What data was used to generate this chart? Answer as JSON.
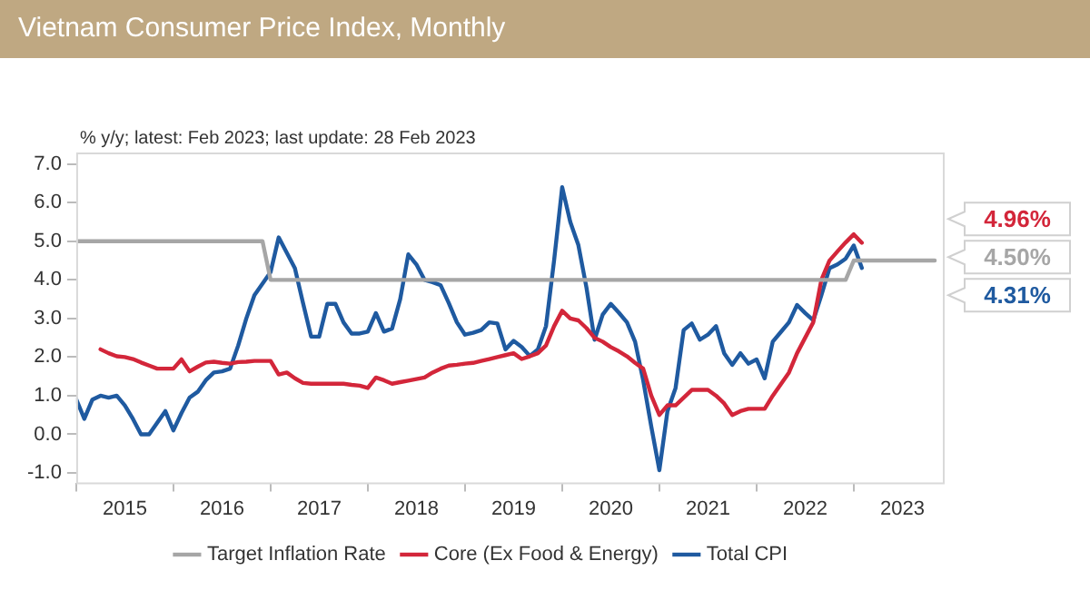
{
  "chart_data": {
    "type": "line",
    "title": "Vietnam Consumer Price Index, Monthly",
    "annotations": [
      "% y/y; latest: Feb 2023; last update: 28 Feb 2023",
      "4.96%",
      "4.50%",
      "4.31%"
    ],
    "x": [
      "2015-01",
      "2015-02",
      "2015-03",
      "2015-04",
      "2015-05",
      "2015-06",
      "2015-07",
      "2015-08",
      "2015-09",
      "2015-10",
      "2015-11",
      "2015-12",
      "2016-01",
      "2016-02",
      "2016-03",
      "2016-04",
      "2016-05",
      "2016-06",
      "2016-07",
      "2016-08",
      "2016-09",
      "2016-10",
      "2016-11",
      "2016-12",
      "2017-01",
      "2017-02",
      "2017-03",
      "2017-04",
      "2017-05",
      "2017-06",
      "2017-07",
      "2017-08",
      "2017-09",
      "2017-10",
      "2017-11",
      "2017-12",
      "2018-01",
      "2018-02",
      "2018-03",
      "2018-04",
      "2018-05",
      "2018-06",
      "2018-07",
      "2018-08",
      "2018-09",
      "2018-10",
      "2018-11",
      "2018-12",
      "2019-01",
      "2019-02",
      "2019-03",
      "2019-04",
      "2019-05",
      "2019-06",
      "2019-07",
      "2019-08",
      "2019-09",
      "2019-10",
      "2019-11",
      "2019-12",
      "2020-01",
      "2020-02",
      "2020-03",
      "2020-04",
      "2020-05",
      "2020-06",
      "2020-07",
      "2020-08",
      "2020-09",
      "2020-10",
      "2020-11",
      "2020-12",
      "2021-01",
      "2021-02",
      "2021-03",
      "2021-04",
      "2021-05",
      "2021-06",
      "2021-07",
      "2021-08",
      "2021-09",
      "2021-10",
      "2021-11",
      "2021-12",
      "2022-01",
      "2022-02",
      "2022-03",
      "2022-04",
      "2022-05",
      "2022-06",
      "2022-07",
      "2022-08",
      "2022-09",
      "2022-10",
      "2022-11",
      "2022-12",
      "2023-01",
      "2023-02"
    ],
    "series": [
      {
        "name": "Target Inflation Rate",
        "color": "#a6a6a6",
        "x": [
          "2015-01",
          "2016-12",
          "2017-01",
          "2022-12",
          "2023-01",
          "2023-11"
        ],
        "values": [
          5.0,
          5.0,
          4.0,
          4.0,
          4.5,
          4.5
        ]
      },
      {
        "name": "Core (Ex Food & Energy)",
        "color": "#d3263a",
        "values": [
          null,
          null,
          null,
          2.2,
          2.1,
          2.02,
          2.0,
          1.95,
          1.86,
          1.78,
          1.7,
          1.7,
          1.7,
          1.94,
          1.63,
          1.75,
          1.86,
          1.88,
          1.85,
          1.83,
          1.87,
          1.88,
          1.9,
          1.9,
          1.9,
          1.55,
          1.6,
          1.45,
          1.33,
          1.31,
          1.31,
          1.31,
          1.31,
          1.31,
          1.28,
          1.26,
          1.2,
          1.47,
          1.4,
          1.31,
          1.35,
          1.39,
          1.43,
          1.47,
          1.6,
          1.7,
          1.78,
          1.8,
          1.83,
          1.85,
          1.9,
          1.95,
          2.0,
          2.05,
          2.1,
          1.95,
          2.02,
          2.1,
          2.3,
          2.8,
          3.2,
          3.0,
          2.95,
          2.75,
          2.5,
          2.4,
          2.26,
          2.15,
          2.02,
          1.85,
          1.7,
          1.0,
          0.5,
          0.75,
          0.75,
          0.95,
          1.15,
          1.15,
          1.15,
          1.0,
          0.8,
          0.5,
          0.6,
          0.66,
          0.66,
          0.66,
          1.0,
          1.3,
          1.6,
          2.1,
          2.5,
          2.9,
          4.0,
          4.5,
          4.74,
          4.97,
          5.18,
          4.96
        ]
      },
      {
        "name": "Total CPI",
        "color": "#1f5aa0",
        "values": [
          0.91,
          0.4,
          0.9,
          1.0,
          0.95,
          1.0,
          0.75,
          0.4,
          0.0,
          0.0,
          0.3,
          0.6,
          0.1,
          0.55,
          0.95,
          1.1,
          1.4,
          1.6,
          1.63,
          1.7,
          2.3,
          3.0,
          3.6,
          3.9,
          4.2,
          5.1,
          4.7,
          4.3,
          3.4,
          2.53,
          2.53,
          3.38,
          3.38,
          2.9,
          2.61,
          2.61,
          2.66,
          3.14,
          2.66,
          2.74,
          3.5,
          4.66,
          4.4,
          4.0,
          3.94,
          3.86,
          3.4,
          2.9,
          2.58,
          2.63,
          2.7,
          2.9,
          2.87,
          2.2,
          2.42,
          2.26,
          2.03,
          2.2,
          2.8,
          4.5,
          6.4,
          5.5,
          4.9,
          3.8,
          2.45,
          3.1,
          3.38,
          3.15,
          2.9,
          2.4,
          1.4,
          0.2,
          -0.93,
          0.6,
          1.2,
          2.7,
          2.87,
          2.45,
          2.58,
          2.8,
          2.1,
          1.8,
          2.1,
          1.83,
          1.94,
          1.45,
          2.4,
          2.65,
          2.9,
          3.35,
          3.14,
          2.95,
          3.6,
          4.3,
          4.4,
          4.55,
          4.89,
          4.31
        ]
      }
    ],
    "xlim": [
      "2015-01",
      "2023-12"
    ],
    "xticks": [
      {
        "value": "2015-01",
        "label": null
      },
      {
        "value": "2015-07",
        "label": "2015"
      },
      {
        "value": "2016-01",
        "label": null
      },
      {
        "value": "2016-07",
        "label": "2016"
      },
      {
        "value": "2017-01",
        "label": null
      },
      {
        "value": "2017-07",
        "label": "2017"
      },
      {
        "value": "2018-01",
        "label": null
      },
      {
        "value": "2018-07",
        "label": "2018"
      },
      {
        "value": "2019-01",
        "label": null
      },
      {
        "value": "2019-07",
        "label": "2019"
      },
      {
        "value": "2020-01",
        "label": null
      },
      {
        "value": "2020-07",
        "label": "2020"
      },
      {
        "value": "2021-01",
        "label": null
      },
      {
        "value": "2021-07",
        "label": "2021"
      },
      {
        "value": "2022-01",
        "label": null
      },
      {
        "value": "2022-07",
        "label": "2022"
      },
      {
        "value": "2023-01",
        "label": null
      },
      {
        "value": "2023-07",
        "label": "2023"
      }
    ],
    "ylim": [
      -1.25,
      7.3
    ],
    "yticks": [
      {
        "value": -1,
        "label": "-1.0"
      },
      {
        "value": 0,
        "label": "0.0"
      },
      {
        "value": 1,
        "label": "1.0"
      },
      {
        "value": 2,
        "label": "2.0"
      },
      {
        "value": 3,
        "label": "3.0"
      },
      {
        "value": 4,
        "label": "4.0"
      },
      {
        "value": 5,
        "label": "5.0"
      },
      {
        "value": 6,
        "label": "6.0"
      },
      {
        "value": 7,
        "label": "7.0"
      }
    ],
    "legend": "bottom",
    "marker": "none",
    "line_style": "solid"
  }
}
